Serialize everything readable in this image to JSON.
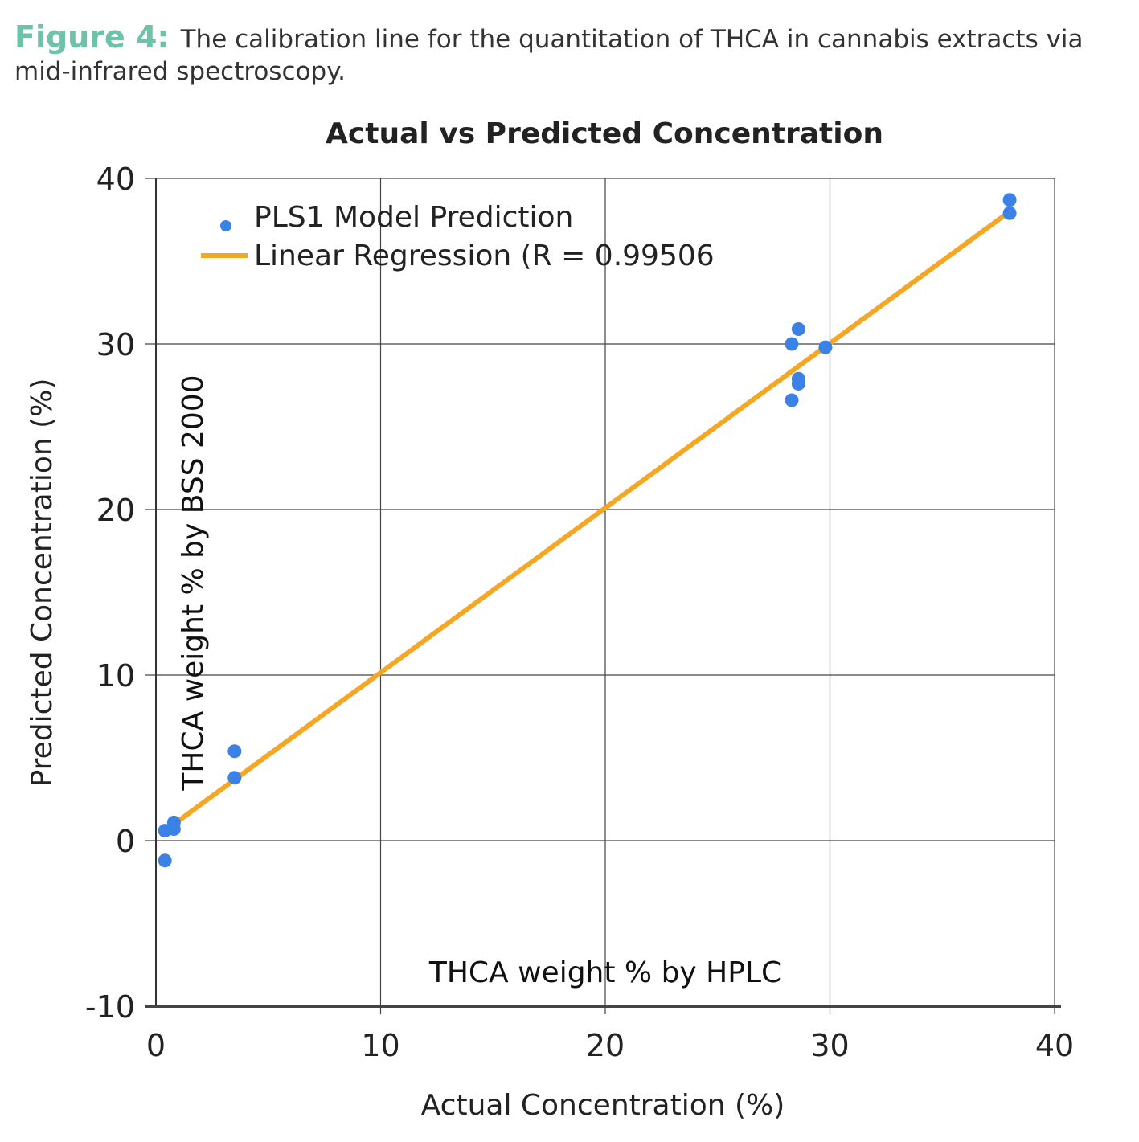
{
  "figure": {
    "label": "Figure 4:",
    "text": "The calibration line for the quantitation of THCA in cannabis extracts via mid-infrared spectroscopy."
  },
  "chart_data": {
    "type": "scatter",
    "title": "Actual vs Predicted Concentration",
    "xlabel": "Actual Concentration (%)",
    "ylabel": "Predicted Concentration (%)",
    "inner_xlabel": "THCA weight % by HPLC",
    "inner_ylabel": "THCA weight % by BSS 2000",
    "xlim": [
      0,
      40
    ],
    "ylim": [
      -10,
      40
    ],
    "x_ticks": [
      "0",
      "10",
      "20",
      "30",
      "40"
    ],
    "y_ticks": [
      "-10",
      "0",
      "10",
      "20",
      "30",
      "40"
    ],
    "grid": true,
    "legend_position": "top-left",
    "series": [
      {
        "name": "PLS1 Model Prediction",
        "kind": "scatter",
        "color": "#3b82e6",
        "points": [
          {
            "x": 0.4,
            "y": -1.2
          },
          {
            "x": 0.4,
            "y": 0.6
          },
          {
            "x": 0.8,
            "y": 0.7
          },
          {
            "x": 0.8,
            "y": 1.1
          },
          {
            "x": 3.5,
            "y": 3.8
          },
          {
            "x": 3.5,
            "y": 5.4
          },
          {
            "x": 28.3,
            "y": 26.6
          },
          {
            "x": 28.3,
            "y": 30.0
          },
          {
            "x": 28.6,
            "y": 27.6
          },
          {
            "x": 28.6,
            "y": 27.9
          },
          {
            "x": 28.6,
            "y": 30.9
          },
          {
            "x": 29.8,
            "y": 29.8
          },
          {
            "x": 38.0,
            "y": 37.9
          },
          {
            "x": 38.0,
            "y": 38.7
          }
        ]
      },
      {
        "name": "Linear Regression (R = 0.99506",
        "kind": "line",
        "color": "#f5a623",
        "points": [
          {
            "x": 0.3,
            "y": 0.5
          },
          {
            "x": 38.0,
            "y": 38.0
          }
        ]
      }
    ]
  }
}
